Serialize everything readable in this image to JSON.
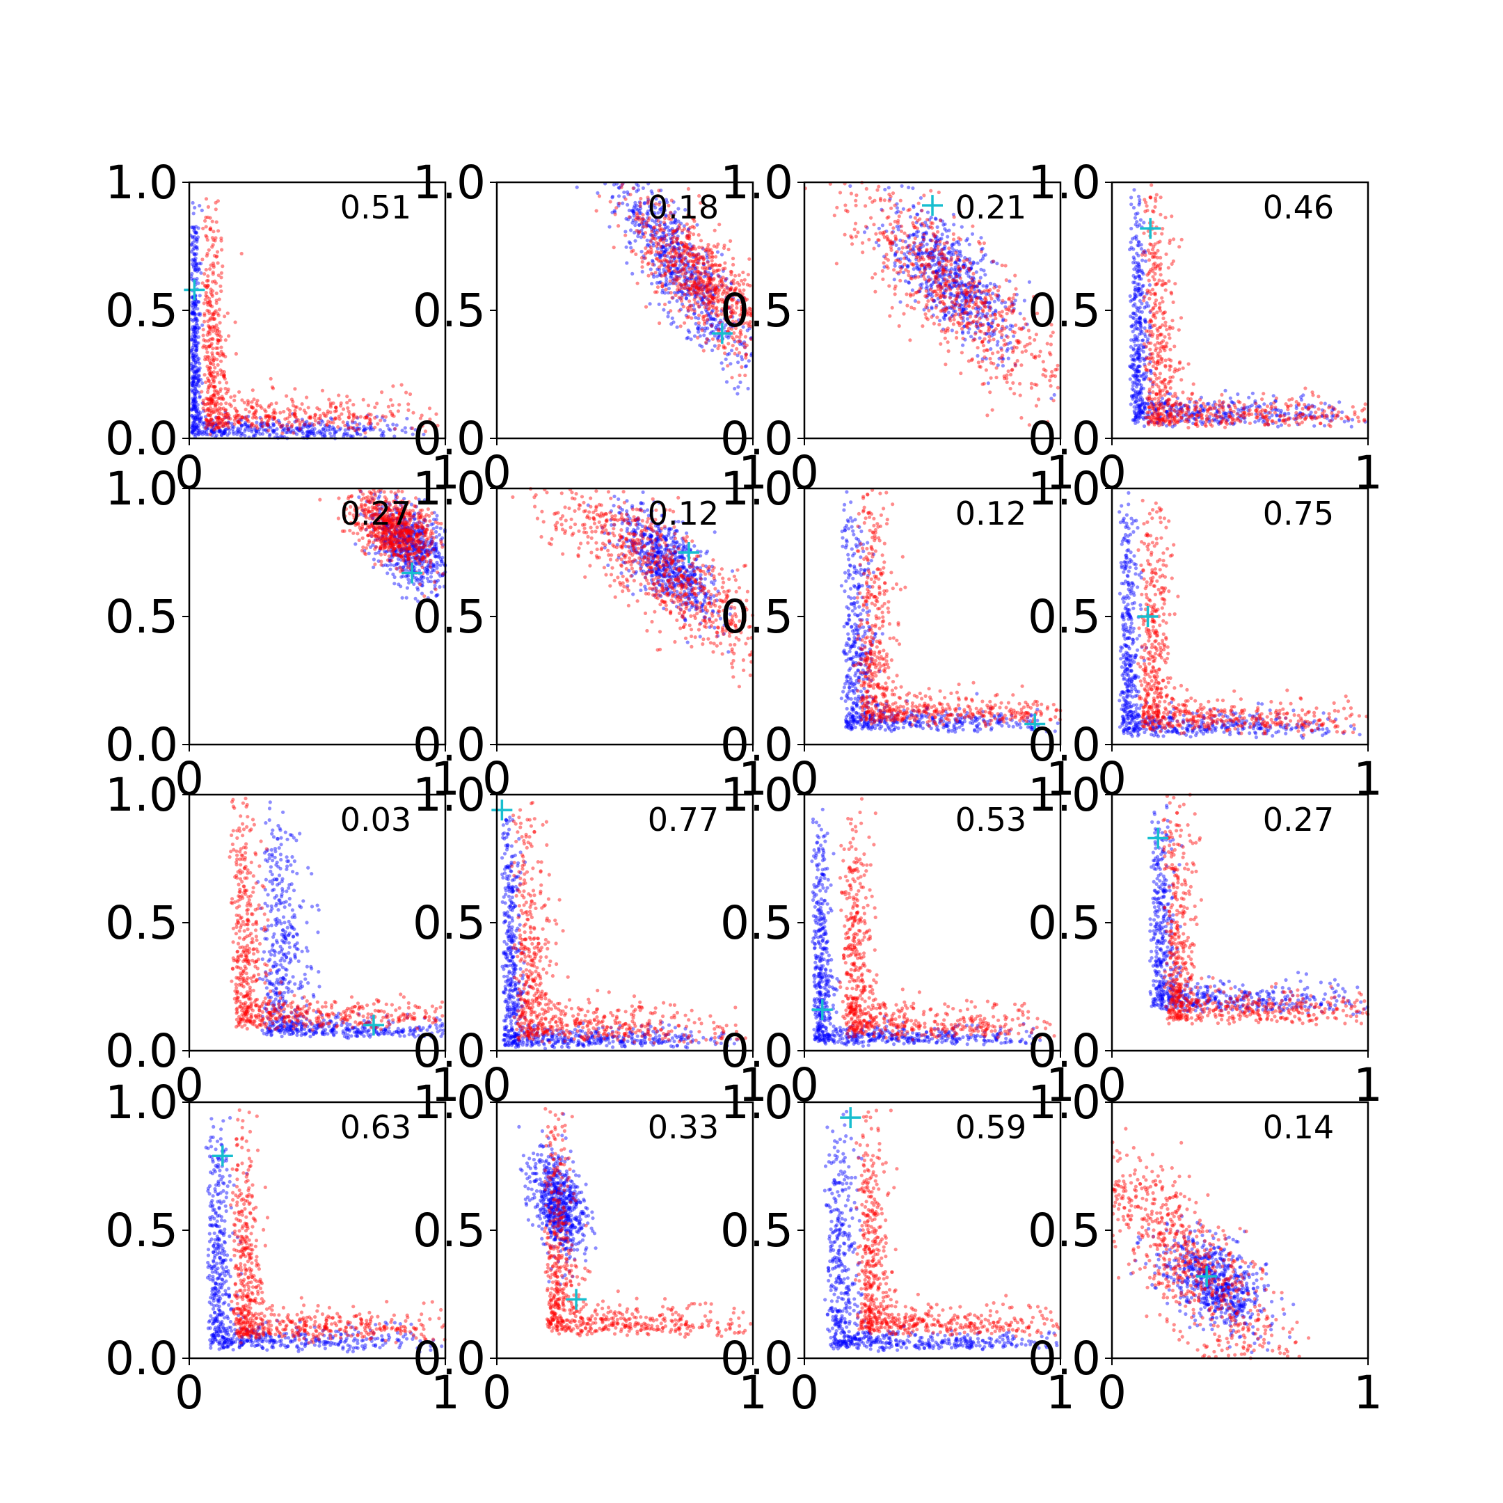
{
  "colors": {
    "series_a": "#0000ff",
    "series_b": "#ff0000",
    "marker": "#17becf",
    "axes": "#000000"
  },
  "chart_data": {
    "type": "scatter",
    "layout": "4x4 grid of small-multiple scatter plots",
    "shared": {
      "xlim": [
        0,
        1
      ],
      "ylim": [
        0,
        1
      ],
      "x_ticks": [
        "0",
        "1"
      ],
      "y_ticks": [
        "0.0",
        "0.5",
        "1.0"
      ],
      "grid": false,
      "legend": "none",
      "series_colors": [
        "#0000ff",
        "#ff0000"
      ],
      "marker_style": "plus",
      "marker_color": "#17becf"
    },
    "panels": [
      {
        "label": "0.51",
        "marker": [
          0.02,
          0.58
        ],
        "blue": {
          "shape": "L",
          "x0": 0.01,
          "y0": 0.01,
          "a": 0.015,
          "b": 0.03,
          "n": 700
        },
        "red": {
          "shape": "L",
          "x0": 0.06,
          "y0": 0.04,
          "a": 0.04,
          "b": 0.06,
          "n": 650
        }
      },
      {
        "label": "0.18",
        "marker": [
          0.88,
          0.41
        ],
        "blue": {
          "shape": "band",
          "cx": 0.72,
          "cy": 0.66,
          "slope": -1.5,
          "len": 0.22,
          "width": 0.06,
          "n": 650
        },
        "red": {
          "shape": "band",
          "cx": 0.8,
          "cy": 0.62,
          "slope": -1.1,
          "len": 0.2,
          "width": 0.07,
          "n": 700
        }
      },
      {
        "label": "0.21",
        "marker": [
          0.5,
          0.91
        ],
        "blue": {
          "shape": "band",
          "cx": 0.57,
          "cy": 0.62,
          "slope": -1.2,
          "len": 0.17,
          "width": 0.07,
          "n": 650
        },
        "red": {
          "shape": "band",
          "cx": 0.58,
          "cy": 0.58,
          "slope": -1.0,
          "len": 0.3,
          "width": 0.09,
          "n": 650
        }
      },
      {
        "label": "0.46",
        "marker": [
          0.15,
          0.82
        ],
        "blue": {
          "shape": "L",
          "x0": 0.08,
          "y0": 0.06,
          "a": 0.03,
          "b": 0.045,
          "n": 650
        },
        "red": {
          "shape": "L",
          "x0": 0.14,
          "y0": 0.06,
          "a": 0.05,
          "b": 0.045,
          "n": 650
        }
      },
      {
        "label": "0.27",
        "marker": [
          0.87,
          0.67
        ],
        "blue": {
          "shape": "band",
          "cx": 0.86,
          "cy": 0.78,
          "slope": -1.3,
          "len": 0.1,
          "width": 0.06,
          "n": 600
        },
        "red": {
          "shape": "band",
          "cx": 0.8,
          "cy": 0.84,
          "slope": -0.8,
          "len": 0.09,
          "width": 0.06,
          "n": 700
        }
      },
      {
        "label": "0.12",
        "marker": [
          0.75,
          0.75
        ],
        "blue": {
          "shape": "band",
          "cx": 0.66,
          "cy": 0.72,
          "slope": -1.1,
          "len": 0.13,
          "width": 0.06,
          "n": 650
        },
        "red": {
          "shape": "band",
          "cx": 0.64,
          "cy": 0.68,
          "slope": -0.8,
          "len": 0.3,
          "width": 0.08,
          "n": 700
        }
      },
      {
        "label": "0.12",
        "marker": [
          0.9,
          0.08
        ],
        "blue": {
          "shape": "L",
          "x0": 0.16,
          "y0": 0.06,
          "a": 0.05,
          "b": 0.035,
          "n": 650
        },
        "red": {
          "shape": "L",
          "x0": 0.22,
          "y0": 0.09,
          "a": 0.06,
          "b": 0.05,
          "n": 650
        }
      },
      {
        "label": "0.75",
        "marker": [
          0.14,
          0.5
        ],
        "blue": {
          "shape": "L",
          "x0": 0.04,
          "y0": 0.04,
          "a": 0.03,
          "b": 0.04,
          "n": 650
        },
        "red": {
          "shape": "L",
          "x0": 0.12,
          "y0": 0.06,
          "a": 0.05,
          "b": 0.05,
          "n": 650
        }
      },
      {
        "label": "0.03",
        "marker": [
          0.72,
          0.1
        ],
        "blue": {
          "shape": "L",
          "x0": 0.3,
          "y0": 0.06,
          "a": 0.07,
          "b": 0.03,
          "n": 650
        },
        "red": {
          "shape": "L",
          "x0": 0.18,
          "y0": 0.1,
          "a": 0.05,
          "b": 0.05,
          "n": 650
        }
      },
      {
        "label": "0.77",
        "marker": [
          0.02,
          0.94
        ],
        "blue": {
          "shape": "L",
          "x0": 0.03,
          "y0": 0.02,
          "a": 0.03,
          "b": 0.03,
          "n": 700
        },
        "red": {
          "shape": "L",
          "x0": 0.08,
          "y0": 0.05,
          "a": 0.06,
          "b": 0.06,
          "n": 650
        }
      },
      {
        "label": "0.53",
        "marker": [
          0.07,
          0.16
        ],
        "blue": {
          "shape": "L",
          "x0": 0.04,
          "y0": 0.03,
          "a": 0.03,
          "b": 0.03,
          "n": 700
        },
        "red": {
          "shape": "L",
          "x0": 0.16,
          "y0": 0.06,
          "a": 0.05,
          "b": 0.06,
          "n": 650
        }
      },
      {
        "label": "0.27",
        "marker": [
          0.18,
          0.83
        ],
        "blue": {
          "shape": "L",
          "x0": 0.16,
          "y0": 0.16,
          "a": 0.04,
          "b": 0.05,
          "n": 650
        },
        "red": {
          "shape": "L",
          "x0": 0.22,
          "y0": 0.12,
          "a": 0.05,
          "b": 0.05,
          "n": 650
        }
      },
      {
        "label": "0.63",
        "marker": [
          0.13,
          0.79
        ],
        "blue": {
          "shape": "L",
          "x0": 0.08,
          "y0": 0.04,
          "a": 0.04,
          "b": 0.04,
          "n": 650
        },
        "red": {
          "shape": "L",
          "x0": 0.18,
          "y0": 0.08,
          "a": 0.05,
          "b": 0.05,
          "n": 650
        }
      },
      {
        "label": "0.33",
        "marker": [
          0.31,
          0.23
        ],
        "blue": {
          "shape": "band",
          "cx": 0.24,
          "cy": 0.6,
          "slope": -4.0,
          "len": 0.1,
          "width": 0.05,
          "n": 650
        },
        "red": {
          "shape": "L",
          "x0": 0.2,
          "y0": 0.1,
          "a": 0.05,
          "b": 0.05,
          "n": 650
        }
      },
      {
        "label": "0.59",
        "marker": [
          0.18,
          0.94
        ],
        "blue": {
          "shape": "L",
          "x0": 0.1,
          "y0": 0.04,
          "a": 0.05,
          "b": 0.03,
          "n": 650
        },
        "red": {
          "shape": "L",
          "x0": 0.22,
          "y0": 0.1,
          "a": 0.05,
          "b": 0.05,
          "n": 650
        }
      },
      {
        "label": "0.14",
        "marker": [
          0.37,
          0.32
        ],
        "blue": {
          "shape": "band",
          "cx": 0.4,
          "cy": 0.29,
          "slope": -0.9,
          "len": 0.12,
          "width": 0.07,
          "n": 650
        },
        "red": {
          "shape": "band",
          "cx": 0.3,
          "cy": 0.38,
          "slope": -1.2,
          "len": 0.3,
          "width": 0.09,
          "n": 650
        }
      }
    ]
  }
}
